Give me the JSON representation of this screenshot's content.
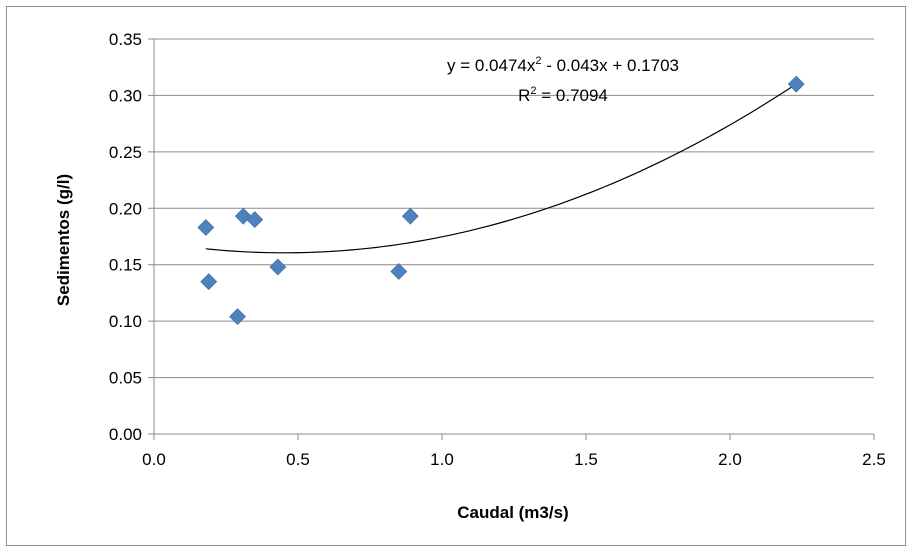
{
  "chart_data": {
    "type": "scatter",
    "xlabel": "Caudal (m3/s)",
    "ylabel": "Sedimentos (g/l)",
    "xlim": [
      0,
      2.5
    ],
    "ylim": [
      0,
      0.35
    ],
    "x_ticks": [
      "0.0",
      "0.5",
      "1.0",
      "1.5",
      "2.0",
      "2.5"
    ],
    "y_ticks": [
      "0.00",
      "0.05",
      "0.10",
      "0.15",
      "0.20",
      "0.25",
      "0.30",
      "0.35"
    ],
    "grid": "horizontal",
    "legend": "none",
    "series": [
      {
        "marker": "diamond",
        "color": "#4f81bd",
        "points": [
          {
            "x": 0.18,
            "y": 0.183
          },
          {
            "x": 0.19,
            "y": 0.135
          },
          {
            "x": 0.29,
            "y": 0.104
          },
          {
            "x": 0.31,
            "y": 0.193
          },
          {
            "x": 0.35,
            "y": 0.19
          },
          {
            "x": 0.43,
            "y": 0.148
          },
          {
            "x": 0.85,
            "y": 0.144
          },
          {
            "x": 0.89,
            "y": 0.193
          },
          {
            "x": 2.23,
            "y": 0.31
          }
        ]
      }
    ],
    "trendline": {
      "type": "polynomial",
      "coefficients": {
        "a": 0.0474,
        "b": -0.043,
        "c": 0.1703
      },
      "x_range": [
        0.18,
        2.23
      ],
      "color": "#000000",
      "equation": "y = 0.0474x",
      "equation_exponent": "2",
      "equation_rest": " - 0.043x + 0.1703",
      "r2_prefix": "R",
      "r2_exponent": "2",
      "r2_rest": " = 0.7094"
    }
  }
}
